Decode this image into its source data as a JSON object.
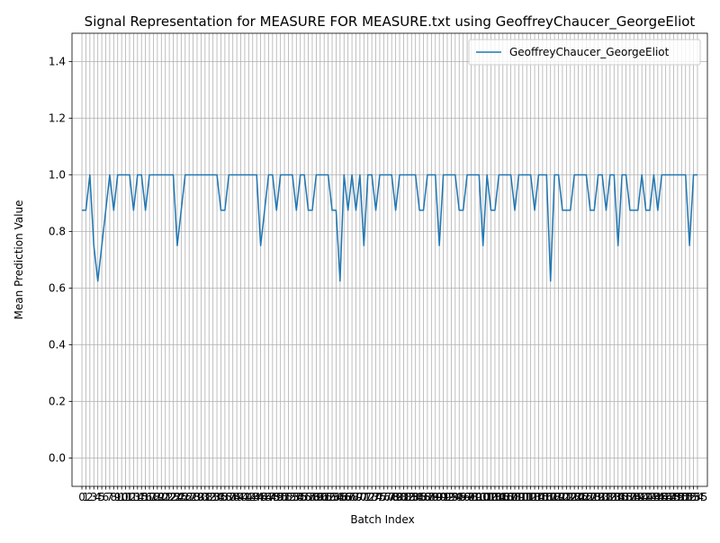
{
  "chart_data": {
    "type": "line",
    "title": "Signal Representation for MEASURE FOR MEASURE.txt using GeoffreyChaucer_GeorgeEliot",
    "xlabel": "Batch Index",
    "ylabel": "Mean Prediction Value",
    "xlim": [
      -2.5,
      157.5
    ],
    "ylim": [
      -0.1,
      1.5
    ],
    "yticks": [
      0.0,
      0.2,
      0.4,
      0.6,
      0.8,
      1.0,
      1.2,
      1.4
    ],
    "grid": true,
    "legend_position": "upper right",
    "series": [
      {
        "name": "GeoffreyChaucer_GeorgeEliot",
        "color": "#1f77b4",
        "values": [
          0.875,
          0.875,
          1.0,
          0.75,
          0.625,
          0.75,
          0.875,
          1.0,
          0.875,
          1.0,
          1.0,
          1.0,
          1.0,
          0.875,
          1.0,
          1.0,
          0.875,
          1.0,
          1.0,
          1.0,
          1.0,
          1.0,
          1.0,
          1.0,
          0.75,
          0.875,
          1.0,
          1.0,
          1.0,
          1.0,
          1.0,
          1.0,
          1.0,
          1.0,
          1.0,
          0.875,
          0.875,
          1.0,
          1.0,
          1.0,
          1.0,
          1.0,
          1.0,
          1.0,
          1.0,
          0.75,
          0.875,
          1.0,
          1.0,
          0.875,
          1.0,
          1.0,
          1.0,
          1.0,
          0.875,
          1.0,
          1.0,
          0.875,
          0.875,
          1.0,
          1.0,
          1.0,
          1.0,
          0.875,
          0.875,
          0.625,
          1.0,
          0.875,
          1.0,
          0.875,
          1.0,
          0.75,
          1.0,
          1.0,
          0.875,
          1.0,
          1.0,
          1.0,
          1.0,
          0.875,
          1.0,
          1.0,
          1.0,
          1.0,
          1.0,
          0.875,
          0.875,
          1.0,
          1.0,
          1.0,
          0.75,
          1.0,
          1.0,
          1.0,
          1.0,
          0.875,
          0.875,
          1.0,
          1.0,
          1.0,
          1.0,
          0.75,
          1.0,
          0.875,
          0.875,
          1.0,
          1.0,
          1.0,
          1.0,
          0.875,
          1.0,
          1.0,
          1.0,
          1.0,
          0.875,
          1.0,
          1.0,
          1.0,
          0.625,
          1.0,
          1.0,
          0.875,
          0.875,
          0.875,
          1.0,
          1.0,
          1.0,
          1.0,
          0.875,
          0.875,
          1.0,
          1.0,
          0.875,
          1.0,
          1.0,
          0.75,
          1.0,
          1.0,
          0.875,
          0.875,
          0.875,
          1.0,
          0.875,
          0.875,
          1.0,
          0.875,
          1.0,
          1.0,
          1.0,
          1.0,
          1.0,
          1.0,
          1.0,
          0.75,
          1.0,
          1.0
        ]
      }
    ]
  }
}
